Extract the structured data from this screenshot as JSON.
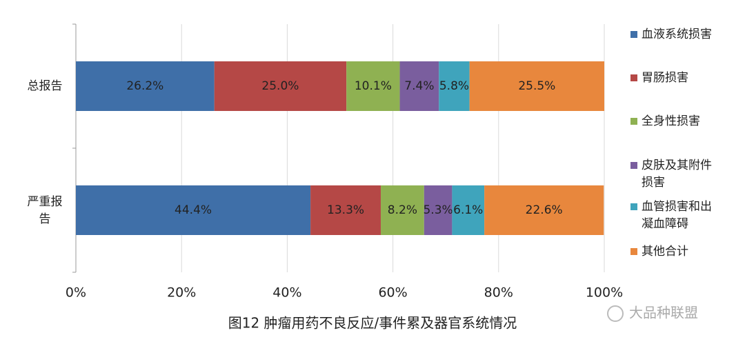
{
  "chart_data": {
    "type": "stacked-bar-horizontal",
    "title": "图12 肿瘤用药不良反应/事件累及器官系统情况",
    "watermark": "大品种联盟",
    "categories": [
      "总报告",
      "严重报告"
    ],
    "series": [
      {
        "name": "血液系统损害",
        "color": "#3f6fa8",
        "values": [
          26.2,
          44.4
        ],
        "value_labels": [
          "26.2%",
          "44.4%"
        ]
      },
      {
        "name": "胃肠损害",
        "color": "#b54846",
        "values": [
          25.0,
          13.3
        ],
        "value_labels": [
          "25.0%",
          "13.3%"
        ]
      },
      {
        "name": "全身性损害",
        "color": "#8fb152",
        "values": [
          10.1,
          8.2
        ],
        "value_labels": [
          "10.1%",
          "8.2%"
        ]
      },
      {
        "name": "皮肤及其附件损害",
        "color": "#7a5e9e",
        "values": [
          7.4,
          5.3
        ],
        "value_labels": [
          "7.4%",
          "5.3%"
        ]
      },
      {
        "name": "血管损害和出凝血障碍",
        "color": "#3fa4bc",
        "values": [
          5.8,
          6.1
        ],
        "value_labels": [
          "5.8%",
          "6.1%"
        ]
      },
      {
        "name": "其他合计",
        "color": "#e8873d",
        "values": [
          25.5,
          22.6
        ],
        "value_labels": [
          "25.5%",
          "22.6%"
        ]
      }
    ],
    "xlim": [
      0,
      100
    ],
    "xticks": [
      {
        "value": 0,
        "label": "0%"
      },
      {
        "value": 20,
        "label": "20%"
      },
      {
        "value": 40,
        "label": "40%"
      },
      {
        "value": 60,
        "label": "60%"
      },
      {
        "value": 80,
        "label": "80%"
      },
      {
        "value": 100,
        "label": "100%"
      }
    ],
    "grid": true,
    "legend": "right"
  }
}
